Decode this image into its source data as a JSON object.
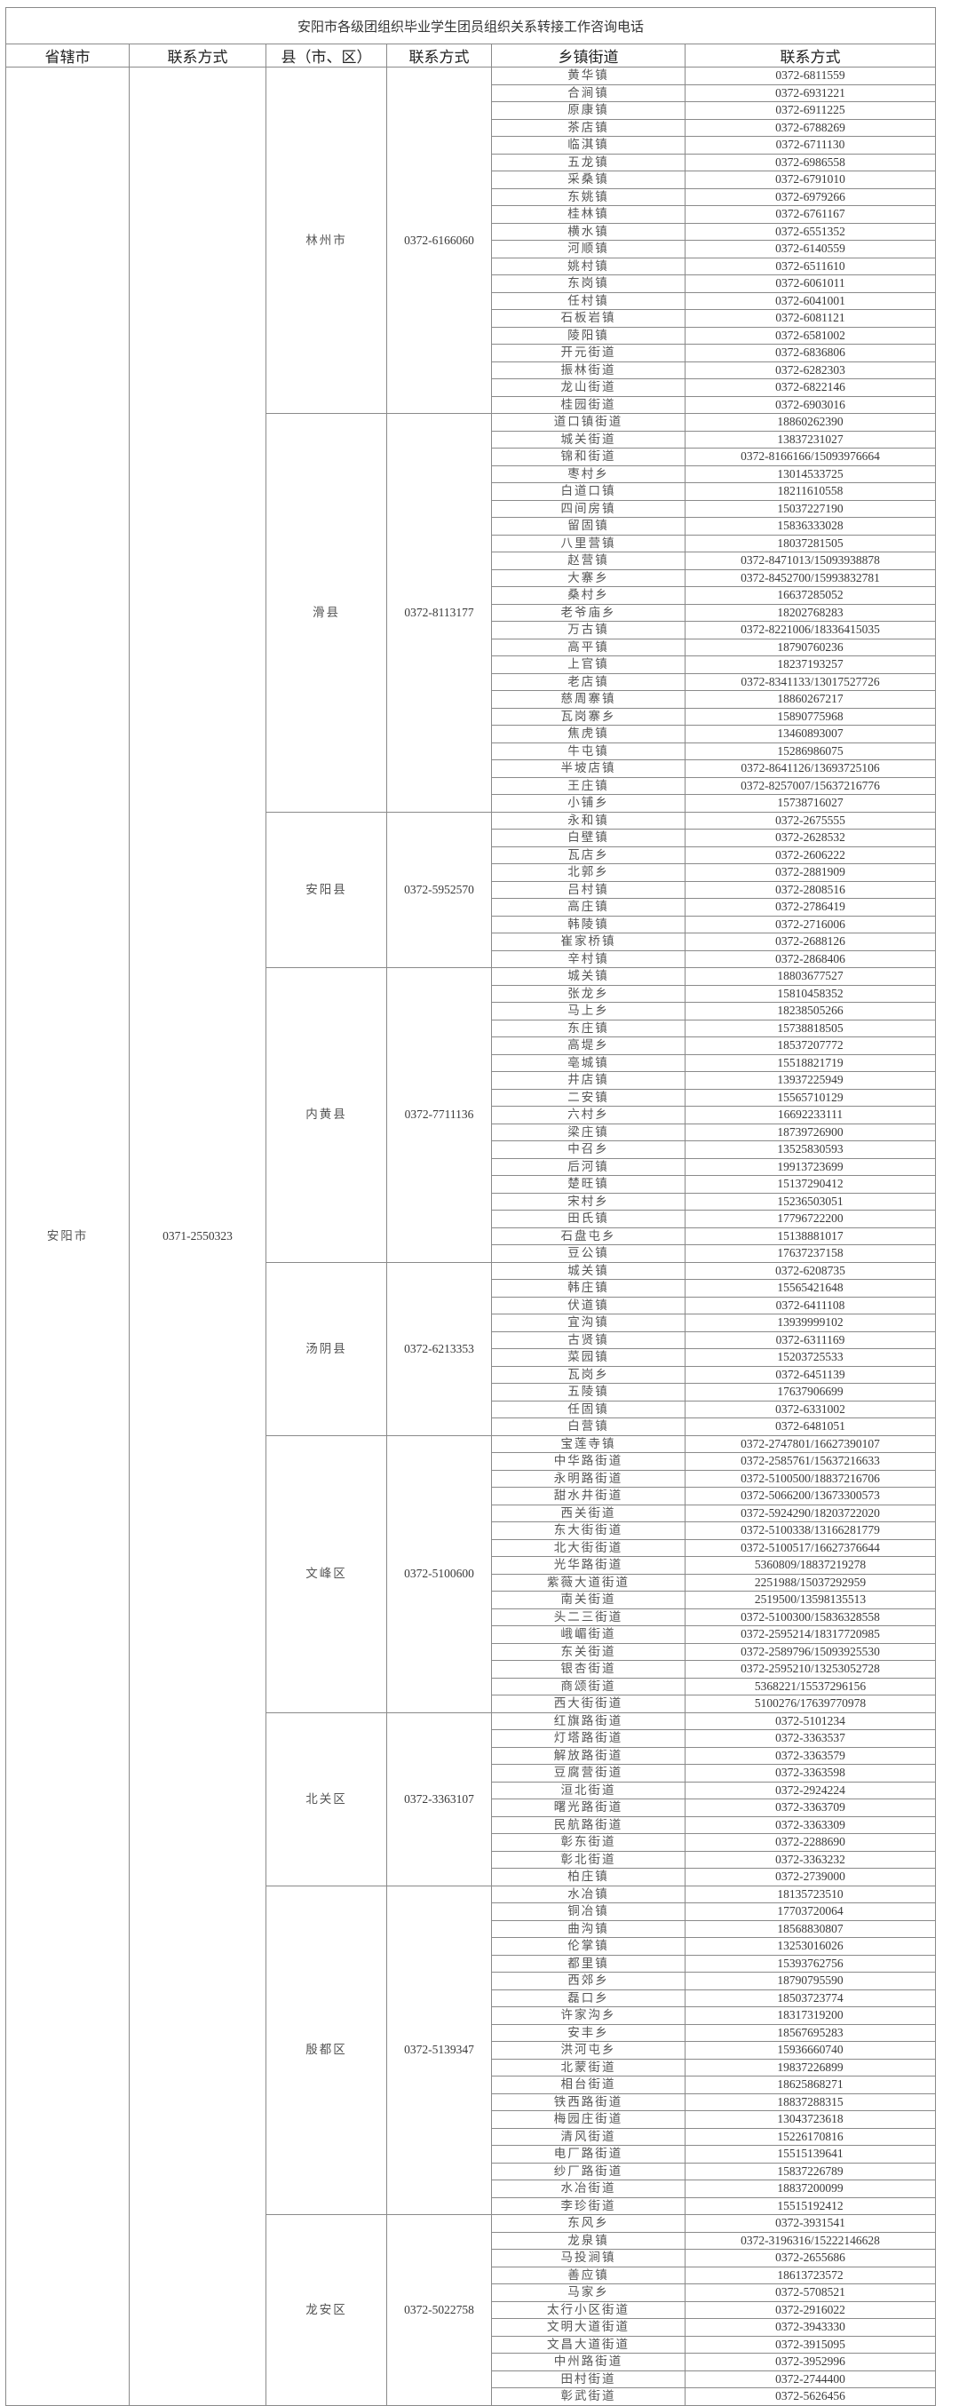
{
  "title": "安阳市各级团组织毕业学生团员组织关系转接工作咨询电话",
  "headers": [
    "省辖市",
    "联系方式",
    "县（市、区）",
    "联系方式",
    "乡镇街道",
    "联系方式"
  ],
  "city": {
    "name": "安阳市",
    "phone": "0371-2550323",
    "counties": [
      {
        "name": "林州市",
        "phone": "0372-6166060",
        "towns": [
          {
            "name": "黄华镇",
            "phone": "0372-6811559"
          },
          {
            "name": "合涧镇",
            "phone": "0372-6931221"
          },
          {
            "name": "原康镇",
            "phone": "0372-6911225"
          },
          {
            "name": "茶店镇",
            "phone": "0372-6788269"
          },
          {
            "name": "临淇镇",
            "phone": "0372-6711130"
          },
          {
            "name": "五龙镇",
            "phone": "0372-6986558"
          },
          {
            "name": "采桑镇",
            "phone": "0372-6791010"
          },
          {
            "name": "东姚镇",
            "phone": "0372-6979266"
          },
          {
            "name": "桂林镇",
            "phone": "0372-6761167"
          },
          {
            "name": "横水镇",
            "phone": "0372-6551352"
          },
          {
            "name": "河顺镇",
            "phone": "0372-6140559"
          },
          {
            "name": "姚村镇",
            "phone": "0372-6511610"
          },
          {
            "name": "东岗镇",
            "phone": "0372-6061011"
          },
          {
            "name": "任村镇",
            "phone": "0372-6041001"
          },
          {
            "name": "石板岩镇",
            "phone": "0372-6081121"
          },
          {
            "name": "陵阳镇",
            "phone": "0372-6581002"
          },
          {
            "name": "开元街道",
            "phone": "0372-6836806"
          },
          {
            "name": "振林街道",
            "phone": "0372-6282303"
          },
          {
            "name": "龙山街道",
            "phone": "0372-6822146"
          },
          {
            "name": "桂园街道",
            "phone": "0372-6903016"
          }
        ]
      },
      {
        "name": "滑县",
        "phone": "0372-8113177",
        "towns": [
          {
            "name": "道口镇街道",
            "phone": "18860262390"
          },
          {
            "name": "城关街道",
            "phone": "13837231027"
          },
          {
            "name": "锦和街道",
            "phone": "0372-8166166/15093976664"
          },
          {
            "name": "枣村乡",
            "phone": "13014533725"
          },
          {
            "name": "白道口镇",
            "phone": "18211610558"
          },
          {
            "name": "四间房镇",
            "phone": "15037227190"
          },
          {
            "name": "留固镇",
            "phone": "15836333028"
          },
          {
            "name": "八里营镇",
            "phone": "18037281505"
          },
          {
            "name": "赵营镇",
            "phone": "0372-8471013/15093938878"
          },
          {
            "name": "大寨乡",
            "phone": "0372-8452700/15993832781"
          },
          {
            "name": "桑村乡",
            "phone": "16637285052"
          },
          {
            "name": "老爷庙乡",
            "phone": "18202768283"
          },
          {
            "name": "万古镇",
            "phone": "0372-8221006/18336415035"
          },
          {
            "name": "高平镇",
            "phone": "18790760236"
          },
          {
            "name": "上官镇",
            "phone": "18237193257"
          },
          {
            "name": "老店镇",
            "phone": "0372-8341133/13017527726"
          },
          {
            "name": "慈周寨镇",
            "phone": "18860267217"
          },
          {
            "name": "瓦岗寨乡",
            "phone": "15890775968"
          },
          {
            "name": "焦虎镇",
            "phone": "13460893007"
          },
          {
            "name": "牛屯镇",
            "phone": "15286986075"
          },
          {
            "name": "半坡店镇",
            "phone": "0372-8641126/13693725106"
          },
          {
            "name": "王庄镇",
            "phone": "0372-8257007/15637216776"
          },
          {
            "name": "小铺乡",
            "phone": "15738716027"
          }
        ]
      },
      {
        "name": "安阳县",
        "phone": "0372-5952570",
        "towns": [
          {
            "name": "永和镇",
            "phone": "0372-2675555"
          },
          {
            "name": "白壁镇",
            "phone": "0372-2628532"
          },
          {
            "name": "瓦店乡",
            "phone": "0372-2606222"
          },
          {
            "name": "北郭乡",
            "phone": "0372-2881909"
          },
          {
            "name": "吕村镇",
            "phone": "0372-2808516"
          },
          {
            "name": "高庄镇",
            "phone": "0372-2786419"
          },
          {
            "name": "韩陵镇",
            "phone": "0372-2716006"
          },
          {
            "name": "崔家桥镇",
            "phone": "0372-2688126"
          },
          {
            "name": "辛村镇",
            "phone": "0372-2868406"
          }
        ]
      },
      {
        "name": "内黄县",
        "phone": "0372-7711136",
        "towns": [
          {
            "name": "城关镇",
            "phone": "18803677527"
          },
          {
            "name": "张龙乡",
            "phone": "15810458352"
          },
          {
            "name": "马上乡",
            "phone": "18238505266"
          },
          {
            "name": "东庄镇",
            "phone": "15738818505"
          },
          {
            "name": "高堤乡",
            "phone": "18537207772"
          },
          {
            "name": "亳城镇",
            "phone": "15518821719"
          },
          {
            "name": "井店镇",
            "phone": "13937225949"
          },
          {
            "name": "二安镇",
            "phone": "15565710129"
          },
          {
            "name": "六村乡",
            "phone": "16692233111"
          },
          {
            "name": "梁庄镇",
            "phone": "18739726900"
          },
          {
            "name": "中召乡",
            "phone": "13525830593"
          },
          {
            "name": "后河镇",
            "phone": "19913723699"
          },
          {
            "name": "楚旺镇",
            "phone": "15137290412"
          },
          {
            "name": "宋村乡",
            "phone": "15236503051"
          },
          {
            "name": "田氏镇",
            "phone": "17796722200"
          },
          {
            "name": "石盘屯乡",
            "phone": "15138881017"
          },
          {
            "name": "豆公镇",
            "phone": "17637237158"
          }
        ]
      },
      {
        "name": "汤阴县",
        "phone": "0372-6213353",
        "towns": [
          {
            "name": "城关镇",
            "phone": "0372-6208735"
          },
          {
            "name": "韩庄镇",
            "phone": "15565421648"
          },
          {
            "name": "伏道镇",
            "phone": "0372-6411108"
          },
          {
            "name": "宜沟镇",
            "phone": "13939999102"
          },
          {
            "name": "古贤镇",
            "phone": "0372-6311169"
          },
          {
            "name": "菜园镇",
            "phone": "15203725533"
          },
          {
            "name": "瓦岗乡",
            "phone": "0372-6451139"
          },
          {
            "name": "五陵镇",
            "phone": "17637906699"
          },
          {
            "name": "任固镇",
            "phone": "0372-6331002"
          },
          {
            "name": "白营镇",
            "phone": "0372-6481051"
          }
        ]
      },
      {
        "name": "文峰区",
        "phone": "0372-5100600",
        "towns": [
          {
            "name": "宝莲寺镇",
            "phone": "0372-2747801/16627390107"
          },
          {
            "name": "中华路街道",
            "phone": "0372-2585761/15637216633"
          },
          {
            "name": "永明路街道",
            "phone": "0372-5100500/18837216706"
          },
          {
            "name": "甜水井街道",
            "phone": "0372-5066200/13673300573"
          },
          {
            "name": "西关街道",
            "phone": "0372-5924290/18203722020"
          },
          {
            "name": "东大街街道",
            "phone": "0372-5100338/13166281779"
          },
          {
            "name": "北大街街道",
            "phone": "0372-5100517/16627376644"
          },
          {
            "name": "光华路街道",
            "phone": "5360809/18837219278"
          },
          {
            "name": "紫薇大道街道",
            "phone": "2251988/15037292959"
          },
          {
            "name": "南关街道",
            "phone": "2519500/13598135513"
          },
          {
            "name": "头二三街道",
            "phone": "0372-5100300/15836328558"
          },
          {
            "name": "峨嵋街道",
            "phone": "0372-2595214/18317720985"
          },
          {
            "name": "东关街道",
            "phone": "0372-2589796/15093925530"
          },
          {
            "name": "银杏街道",
            "phone": "0372-2595210/13253052728"
          },
          {
            "name": "商颂街道",
            "phone": "5368221/15537296156"
          },
          {
            "name": "西大街街道",
            "phone": "5100276/17639770978"
          }
        ]
      },
      {
        "name": "北关区",
        "phone": "0372-3363107",
        "towns": [
          {
            "name": "红旗路街道",
            "phone": "0372-5101234"
          },
          {
            "name": "灯塔路街道",
            "phone": "0372-3363537"
          },
          {
            "name": "解放路街道",
            "phone": "0372-3363579"
          },
          {
            "name": "豆腐营街道",
            "phone": "0372-3363598"
          },
          {
            "name": "洹北街道",
            "phone": "0372-2924224"
          },
          {
            "name": "曙光路街道",
            "phone": "0372-3363709"
          },
          {
            "name": "民航路街道",
            "phone": "0372-3363309"
          },
          {
            "name": "彰东街道",
            "phone": "0372-2288690"
          },
          {
            "name": "彰北街道",
            "phone": "0372-3363232"
          },
          {
            "name": "柏庄镇",
            "phone": "0372-2739000"
          }
        ]
      },
      {
        "name": "殷都区",
        "phone": "0372-5139347",
        "towns": [
          {
            "name": "水冶镇",
            "phone": "18135723510"
          },
          {
            "name": "铜冶镇",
            "phone": "17703720064"
          },
          {
            "name": "曲沟镇",
            "phone": "18568830807"
          },
          {
            "name": "伦掌镇",
            "phone": "13253016026"
          },
          {
            "name": "都里镇",
            "phone": "15393762756"
          },
          {
            "name": "西郊乡",
            "phone": "18790795590"
          },
          {
            "name": "磊口乡",
            "phone": "18503723774"
          },
          {
            "name": "许家沟乡",
            "phone": "18317319200"
          },
          {
            "name": "安丰乡",
            "phone": "18567695283"
          },
          {
            "name": "洪河屯乡",
            "phone": "15936660740"
          },
          {
            "name": "北蒙街道",
            "phone": "19837226899"
          },
          {
            "name": "相台街道",
            "phone": "18625868271"
          },
          {
            "name": "铁西路街道",
            "phone": "18837288315"
          },
          {
            "name": "梅园庄街道",
            "phone": "13043723618"
          },
          {
            "name": "清风街道",
            "phone": "15226170816"
          },
          {
            "name": "电厂路街道",
            "phone": "15515139641"
          },
          {
            "name": "纱厂路街道",
            "phone": "15837226789"
          },
          {
            "name": "水冶街道",
            "phone": "18837200099"
          },
          {
            "name": "李珍街道",
            "phone": "15515192412"
          }
        ]
      },
      {
        "name": "龙安区",
        "phone": "0372-5022758",
        "towns": [
          {
            "name": "东风乡",
            "phone": "0372-3931541"
          },
          {
            "name": "龙泉镇",
            "phone": "0372-3196316/15222146628"
          },
          {
            "name": "马投涧镇",
            "phone": "0372-2655686"
          },
          {
            "name": "善应镇",
            "phone": "18613723572"
          },
          {
            "name": "马家乡",
            "phone": "0372-5708521"
          },
          {
            "name": "太行小区街道",
            "phone": "0372-2916022"
          },
          {
            "name": "文明大道街道",
            "phone": "0372-3943330"
          },
          {
            "name": "文昌大道街道",
            "phone": "0372-3915095"
          },
          {
            "name": "中州路街道",
            "phone": "0372-3952996"
          },
          {
            "name": "田村街道",
            "phone": "0372-2744400"
          },
          {
            "name": "彰武街道",
            "phone": "0372-5626456"
          }
        ]
      }
    ]
  }
}
